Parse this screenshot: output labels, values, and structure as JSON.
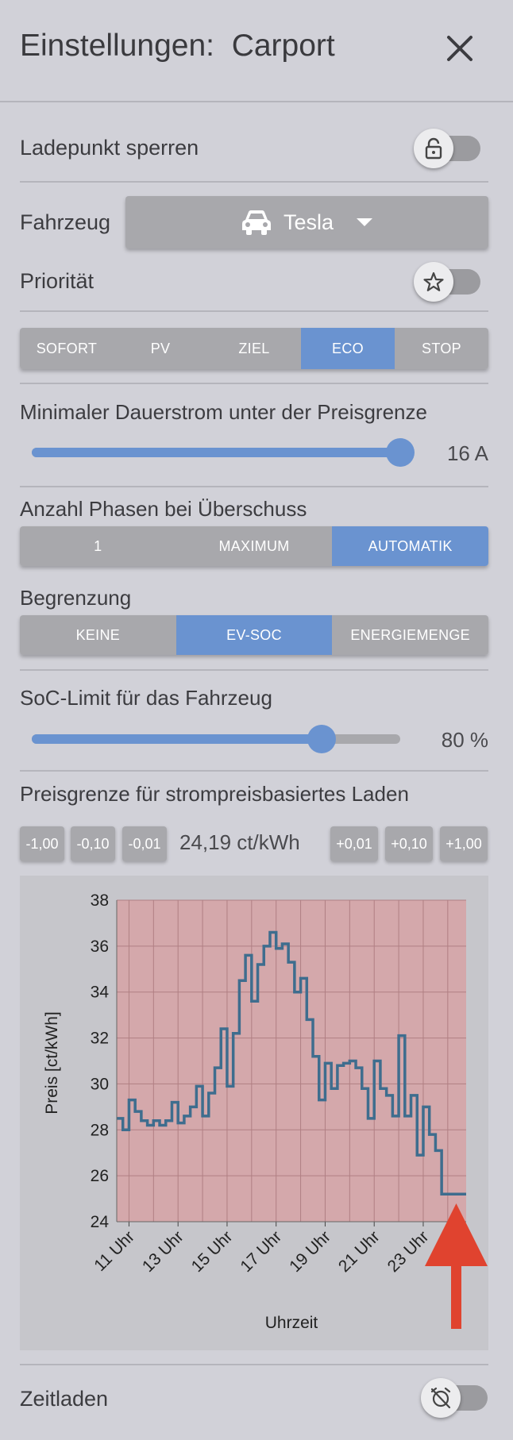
{
  "header": {
    "title": "Einstellungen:",
    "title_name": "Carport"
  },
  "lock": {
    "label": "Ladepunkt sperren",
    "on": false
  },
  "vehicle": {
    "label": "Fahrzeug",
    "selected": "Tesla"
  },
  "priority": {
    "label": "Priorität",
    "on": false
  },
  "modes": {
    "options": [
      "SOFORT",
      "PV",
      "ZIEL",
      "ECO",
      "STOP"
    ],
    "active": "ECO"
  },
  "min_current": {
    "label": "Minimaler Dauerstrom unter der Preisgrenze",
    "value": 16,
    "value_text": "16 A",
    "fill_fraction": 1.0
  },
  "phases": {
    "label": "Anzahl Phasen bei Überschuss",
    "options": [
      "1",
      "MAXIMUM",
      "AUTOMATIK"
    ],
    "active": "AUTOMATIK"
  },
  "limit": {
    "label": "Begrenzung",
    "options": [
      "KEINE",
      "EV-SOC",
      "ENERGIEMENGE"
    ],
    "active": "EV-SOC"
  },
  "soc_limit": {
    "label": "SoC-Limit für das Fahrzeug",
    "value": 80,
    "value_text": "80 %",
    "fill_fraction": 0.8
  },
  "price_limit": {
    "label": "Preisgrenze für strompreisbasiertes Laden",
    "value_text": "24,19 ct/kWh",
    "buttons_minus": [
      "-1,00",
      "-0,10",
      "-0,01"
    ],
    "buttons_plus": [
      "+0,01",
      "+0,10",
      "+1,00"
    ]
  },
  "timed_charging": {
    "label": "Zeitladen",
    "on": false
  },
  "colors": {
    "accent": "#6a93d0",
    "button_grey": "#a8a8ac",
    "background": "#d1d1d8",
    "chart_fill": "#d4a8ab",
    "line": "#3e6d8e",
    "arrow": "#e0432f"
  },
  "chart_data": {
    "type": "line",
    "step": true,
    "xlabel": "Uhrzeit",
    "ylabel": "Preis [ct/kWh]",
    "ylim": [
      24,
      38
    ],
    "yticks": [
      "24",
      "26",
      "28",
      "30",
      "32",
      "34",
      "36",
      "38"
    ],
    "xticks": [
      "11 Uhr",
      "13 Uhr",
      "15 Uhr",
      "17 Uhr",
      "19 Uhr",
      "21 Uhr",
      "23 Uhr"
    ],
    "xtick_hours": [
      11,
      13,
      15,
      17,
      19,
      21,
      23
    ],
    "xlim": [
      10.5,
      24.75
    ],
    "grid": true,
    "series": [
      {
        "x": [
          10.5,
          10.75,
          11,
          11.25,
          11.5,
          11.75,
          12,
          12.25,
          12.5,
          12.75,
          13,
          13.25,
          13.5,
          13.75,
          14,
          14.25,
          14.5,
          14.75,
          15,
          15.25,
          15.5,
          15.75,
          16,
          16.25,
          16.5,
          16.75,
          17,
          17.25,
          17.5,
          17.75,
          18,
          18.25,
          18.5,
          18.75,
          19,
          19.25,
          19.5,
          19.75,
          20,
          20.25,
          20.5,
          20.75,
          21,
          21.25,
          21.5,
          21.75,
          22,
          22.25,
          22.5,
          22.75,
          23,
          23.25,
          23.5,
          23.75,
          24,
          24.25,
          24.5
        ],
        "y": [
          28.5,
          28.0,
          29.3,
          28.8,
          28.4,
          28.2,
          28.4,
          28.2,
          28.4,
          29.2,
          28.3,
          28.6,
          29.0,
          29.9,
          28.6,
          29.6,
          30.7,
          32.4,
          29.9,
          32.2,
          34.5,
          35.6,
          33.6,
          35.2,
          36.0,
          36.6,
          35.9,
          36.1,
          35.3,
          34.0,
          34.6,
          32.8,
          31.2,
          29.3,
          30.9,
          29.8,
          30.8,
          30.9,
          31.0,
          30.7,
          29.8,
          28.5,
          31.0,
          29.8,
          29.5,
          28.6,
          32.1,
          28.6,
          29.5,
          26.9,
          29.0,
          27.8,
          27.1,
          25.2,
          25.2,
          25.2,
          25.2
        ]
      }
    ],
    "annotation": {
      "type": "arrow",
      "direction": "up",
      "color": "#e0432f"
    }
  }
}
